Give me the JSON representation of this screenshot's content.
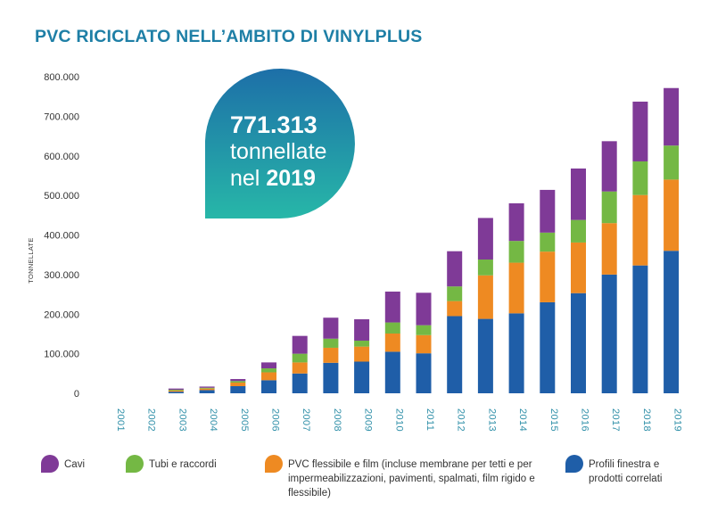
{
  "title": "PVC RICICLATO NELL’AMBITO DI VINYLPLUS",
  "callout": {
    "value": "771.313",
    "line2": "tonnellate",
    "line3_prefix": "nel ",
    "line3_year": "2019",
    "color_top": "#1d6fa8",
    "color_bottom": "#27b7a8"
  },
  "chart_data": {
    "type": "bar",
    "stacked": true,
    "ylabel": "TONNELLATE",
    "ylim": [
      0,
      800000
    ],
    "yticks": [
      "0",
      "100.000",
      "200.000",
      "300.000",
      "400.000",
      "500.000",
      "600.000",
      "700.000",
      "800.000"
    ],
    "categories": [
      "2001",
      "2002",
      "2003",
      "2004",
      "2005",
      "2006",
      "2007",
      "2008",
      "2009",
      "2010",
      "2011",
      "2012",
      "2013",
      "2014",
      "2015",
      "2016",
      "2017",
      "2018",
      "2019"
    ],
    "series": [
      {
        "name": "Profili finestra e prodotti correlati",
        "color": "#1f5ea8",
        "values": [
          0,
          0,
          4000,
          8000,
          18000,
          33000,
          50000,
          77000,
          80000,
          105000,
          101000,
          195000,
          188000,
          202000,
          230000,
          253000,
          300000,
          323000,
          360000
        ]
      },
      {
        "name": "PVC flessibile e film (incluse membrane per tetti e per impermeabilizzazioni, pavimenti, spalmati, film rigido e flessibile)",
        "color": "#ee8a22",
        "values": [
          0,
          0,
          3000,
          4000,
          9000,
          20000,
          28000,
          38000,
          38000,
          46000,
          46000,
          38000,
          110000,
          128000,
          128000,
          128000,
          130000,
          178000,
          180000
        ]
      },
      {
        "name": "Tubi e raccordi",
        "color": "#74b844",
        "values": [
          0,
          0,
          2000,
          2000,
          4000,
          10000,
          22000,
          23000,
          15000,
          28000,
          25000,
          37000,
          40000,
          55000,
          48000,
          57000,
          80000,
          85000,
          86000
        ]
      },
      {
        "name": "Cavi",
        "color": "#7f3a97",
        "values": [
          0,
          0,
          3000,
          3000,
          5000,
          15000,
          45000,
          53000,
          54000,
          78000,
          82000,
          89000,
          105000,
          95000,
          108000,
          130000,
          127000,
          151000,
          145313
        ]
      }
    ],
    "legend_position": "bottom",
    "grid": false
  },
  "legend": [
    {
      "label": "Cavi",
      "color": "#7f3a97"
    },
    {
      "label": "Tubi e raccordi",
      "color": "#74b844"
    },
    {
      "label": "PVC flessibile e film (incluse membrane per tetti e per impermeabilizzazioni, pavimenti, spalmati, film rigido e flessibile)",
      "color": "#ee8a22"
    },
    {
      "label": "Profili finestra e prodotti correlati",
      "color": "#1f5ea8"
    }
  ]
}
